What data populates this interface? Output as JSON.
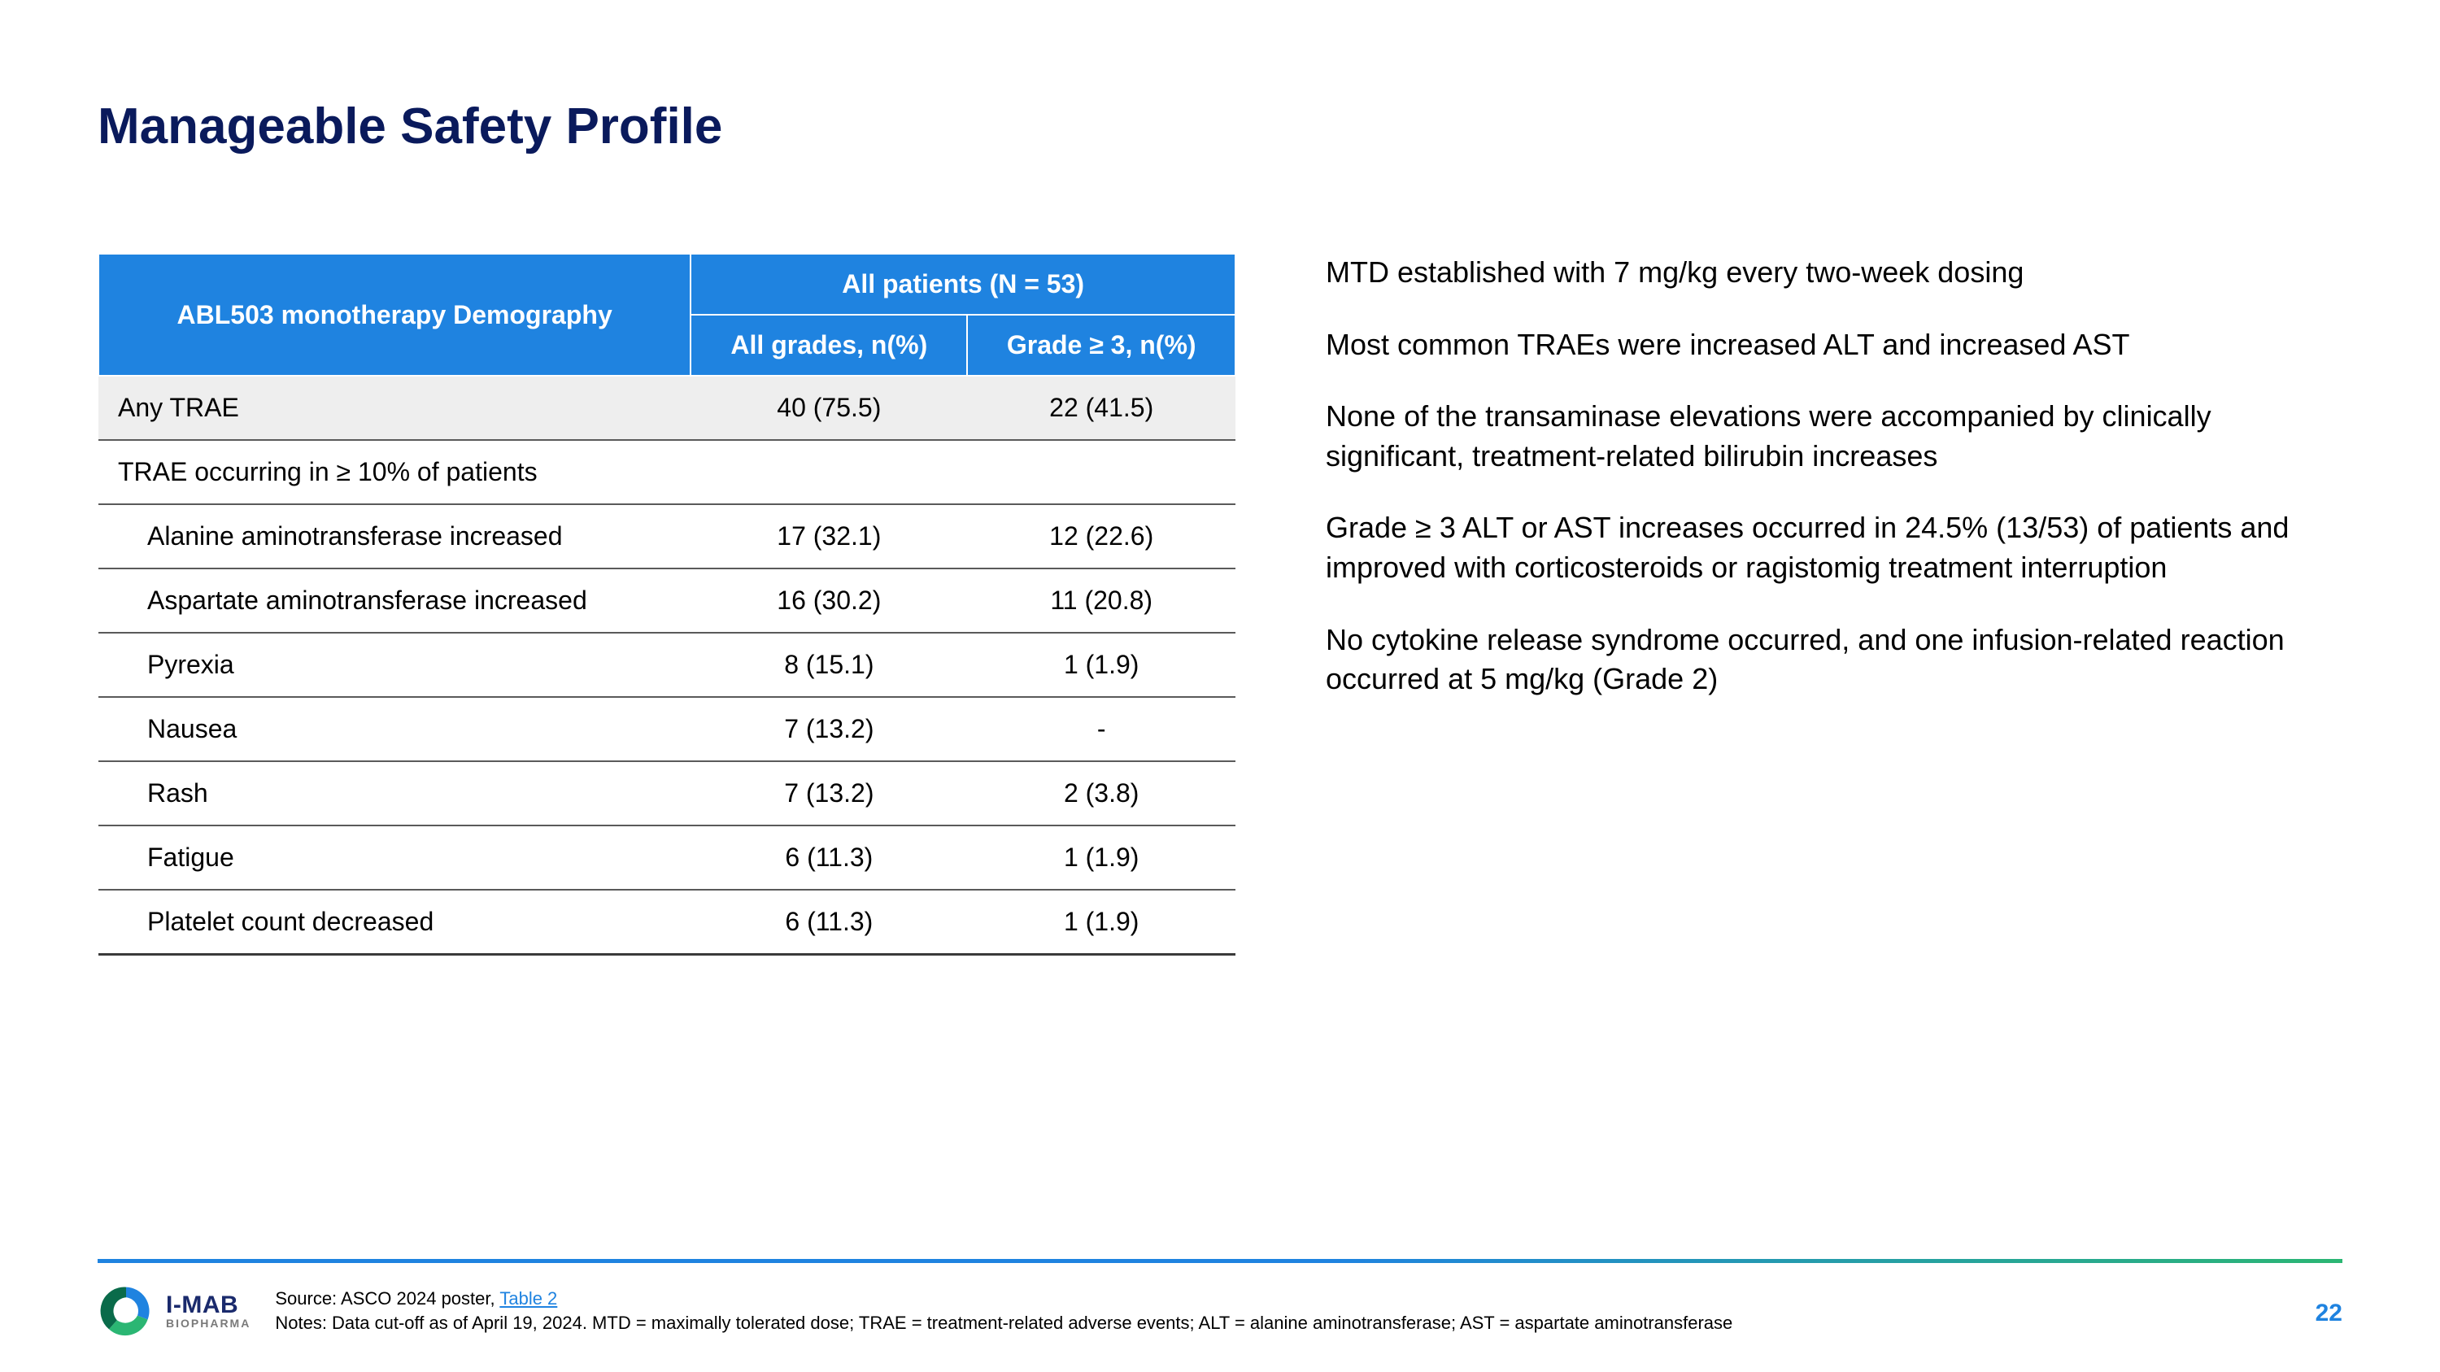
{
  "title": "Manageable Safety Profile",
  "table": {
    "head": {
      "left": "ABL503 monotherapy Demography",
      "top": "All patients (N = 53)",
      "col1": "All grades, n(%)",
      "col2": "Grade ≥ 3, n(%)"
    },
    "rows": [
      {
        "label": "Any TRAE",
        "c1": "40 (75.5)",
        "c2": "22 (41.5)",
        "shade": true,
        "indent": false
      },
      {
        "label": "TRAE occurring in ≥ 10% of patients",
        "c1": "",
        "c2": "",
        "shade": false,
        "indent": false
      },
      {
        "label": "Alanine aminotransferase increased",
        "c1": "17 (32.1)",
        "c2": "12 (22.6)",
        "shade": false,
        "indent": true
      },
      {
        "label": "Aspartate aminotransferase increased",
        "c1": "16 (30.2)",
        "c2": "11 (20.8)",
        "shade": false,
        "indent": true
      },
      {
        "label": "Pyrexia",
        "c1": "8 (15.1)",
        "c2": "1 (1.9)",
        "shade": false,
        "indent": true
      },
      {
        "label": "Nausea",
        "c1": "7 (13.2)",
        "c2": "-",
        "shade": false,
        "indent": true
      },
      {
        "label": "Rash",
        "c1": "7 (13.2)",
        "c2": "2 (3.8)",
        "shade": false,
        "indent": true
      },
      {
        "label": "Fatigue",
        "c1": "6 (11.3)",
        "c2": "1 (1.9)",
        "shade": false,
        "indent": true
      },
      {
        "label": "Platelet count decreased",
        "c1": "6 (11.3)",
        "c2": "1 (1.9)",
        "shade": false,
        "indent": true
      }
    ]
  },
  "bullets": [
    "MTD established with 7 mg/kg every two-week dosing",
    "Most common TRAEs were increased ALT and increased AST",
    "None of the transaminase elevations were accompanied by clinically significant, treatment-related bilirubin increases",
    "Grade ≥ 3 ALT or AST increases occurred in 24.5% (13/53) of patients and improved with corticosteroids or ragistomig treatment interruption",
    "No cytokine release syndrome occurred, and one infusion-related reaction occurred at 5 mg/kg (Grade 2)"
  ],
  "footer": {
    "source_prefix": "Source: ASCO 2024 poster, ",
    "source_link": "Table 2",
    "notes": "Notes: Data cut-off as of April 19, 2024. MTD = maximally tolerated dose; TRAE = treatment-related adverse events; ALT = alanine aminotransferase; AST = aspartate aminotransferase",
    "brand": "I-MAB",
    "brand_sub": "BIOPHARMA",
    "page": "22"
  },
  "colors": {
    "title": "#0a1a5c",
    "header_bg": "#1f83e0",
    "row_shade": "#eeeeee",
    "rule_left": "#1f83e0",
    "rule_right": "#2bb673",
    "link": "#1f83e0"
  }
}
